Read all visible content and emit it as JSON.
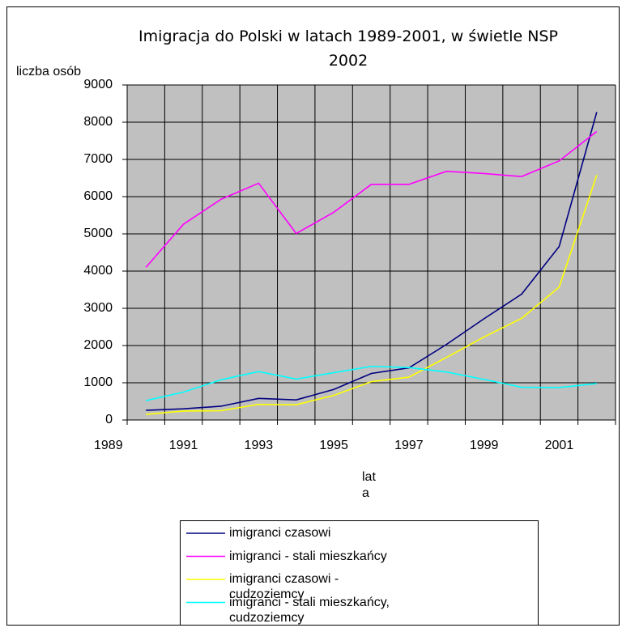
{
  "chart_data": {
    "type": "line",
    "title": "Imigracja do Polski w latach 1989-2001, w świetle NSP 2002",
    "y_label": "liczba osób",
    "x_label": "lata",
    "x": [
      1990,
      1991,
      1992,
      1993,
      1994,
      1995,
      1996,
      1997,
      1998,
      1999,
      2000,
      2001,
      2002
    ],
    "xlim": [
      1989.5,
      2002.5
    ],
    "xticks": [
      1989,
      1991,
      1993,
      1995,
      1997,
      1999,
      2001
    ],
    "ylim": [
      0,
      9000
    ],
    "yticks": [
      0,
      1000,
      2000,
      3000,
      4000,
      5000,
      6000,
      7000,
      8000,
      9000
    ],
    "grid": true,
    "series": [
      {
        "name": "imigranci czasowi",
        "color": "#000080",
        "values": [
          260,
          300,
          370,
          580,
          540,
          820,
          1250,
          1400,
          2030,
          2720,
          3380,
          4660,
          8270
        ]
      },
      {
        "name": "imigranci - stali mieszkańcy",
        "color": "#ff00ff",
        "values": [
          4100,
          5260,
          5930,
          6360,
          5010,
          5580,
          6330,
          6330,
          6680,
          6620,
          6540,
          6960,
          7750
        ]
      },
      {
        "name": "imigranci czasowi - cudzoziemcy",
        "color": "#ffff00",
        "values": [
          150,
          240,
          250,
          420,
          410,
          660,
          1030,
          1150,
          1680,
          2230,
          2730,
          3570,
          6580
        ]
      },
      {
        "name": "imigranci - stali mieszkańcy, cudzoziemcy",
        "color": "#00ffff",
        "values": [
          520,
          750,
          1080,
          1300,
          1100,
          1270,
          1440,
          1410,
          1290,
          1090,
          880,
          870,
          980
        ]
      }
    ]
  }
}
